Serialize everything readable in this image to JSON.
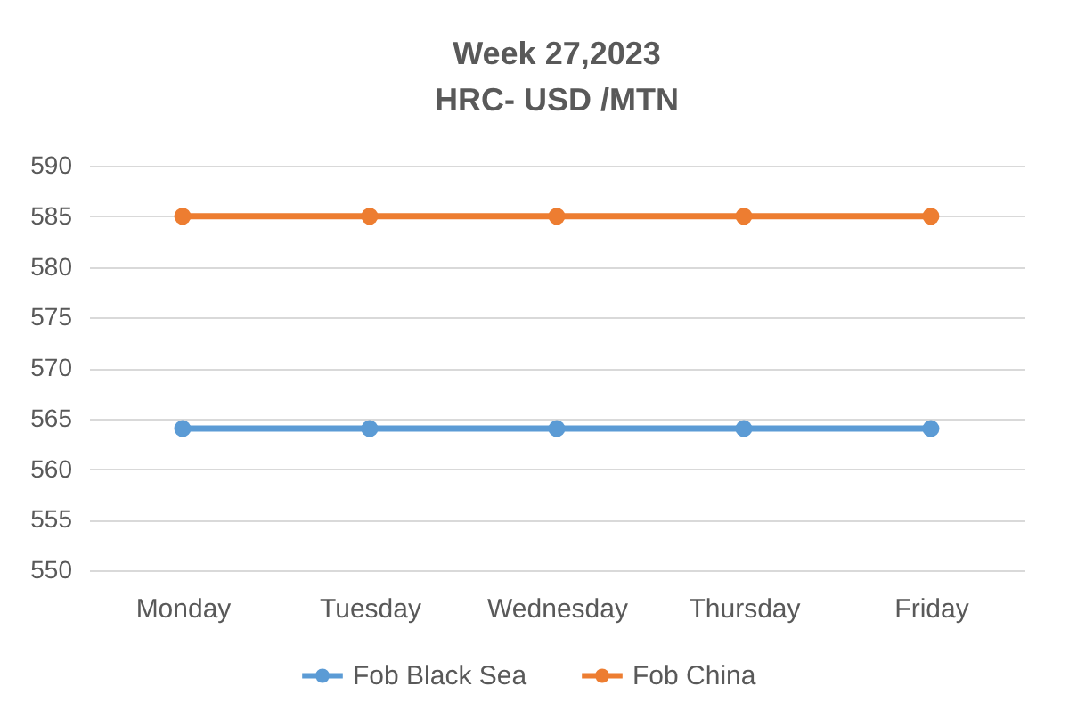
{
  "chart_data": {
    "type": "line",
    "title": "Week 27,2023",
    "subtitle": "HRC- USD /MTN",
    "categories": [
      "Monday",
      "Tuesday",
      "Wednesday",
      "Thursday",
      "Friday"
    ],
    "series": [
      {
        "name": "Fob Black Sea",
        "color": "#5b9bd5",
        "values": [
          564,
          564,
          564,
          564,
          564
        ]
      },
      {
        "name": "Fob China",
        "color": "#ed7d31",
        "values": [
          585,
          585,
          585,
          585,
          585
        ]
      }
    ],
    "ylim": [
      550,
      590
    ],
    "yticks": [
      550,
      555,
      560,
      565,
      570,
      575,
      580,
      585,
      590
    ],
    "grid": "y",
    "legend": "bottom",
    "marker": "circle",
    "line_style": "solid"
  }
}
